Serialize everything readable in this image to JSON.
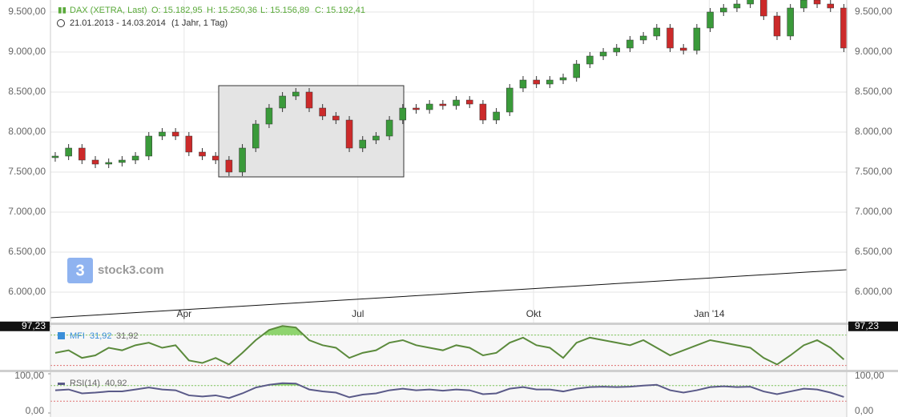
{
  "chart_data": [
    {
      "type": "candlestick",
      "title": "DAX (XETRA, Last)",
      "quote": [
        "O: 15.182,95",
        "H: 15.250,36",
        "L: 15.156,89",
        "C: 15.192,41"
      ],
      "period": "21.01.2013 - 14.03.2014",
      "period_note": "(1 Jahr, 1 Tag)",
      "watermark": "stock3.com",
      "x": [
        "2013-01-21",
        "2013-01-28",
        "2013-02-04",
        "2013-02-11",
        "2013-02-18",
        "2013-02-25",
        "2013-03-04",
        "2013-03-11",
        "2013-03-18",
        "2013-03-25",
        "2013-04-01",
        "2013-04-08",
        "2013-04-15",
        "2013-04-22",
        "2013-04-29",
        "2013-05-06",
        "2013-05-13",
        "2013-05-20",
        "2013-05-27",
        "2013-06-03",
        "2013-06-10",
        "2013-06-17",
        "2013-06-24",
        "2013-07-01",
        "2013-07-08",
        "2013-07-15",
        "2013-07-22",
        "2013-07-29",
        "2013-08-05",
        "2013-08-12",
        "2013-08-19",
        "2013-08-26",
        "2013-09-02",
        "2013-09-09",
        "2013-09-16",
        "2013-09-23",
        "2013-09-30",
        "2013-10-07",
        "2013-10-14",
        "2013-10-21",
        "2013-10-28",
        "2013-11-04",
        "2013-11-11",
        "2013-11-18",
        "2013-11-25",
        "2013-12-02",
        "2013-12-09",
        "2013-12-16",
        "2013-12-23",
        "2013-12-30",
        "2014-01-06",
        "2014-01-13",
        "2014-01-20",
        "2014-01-27",
        "2014-02-03",
        "2014-02-10",
        "2014-02-17",
        "2014-02-24",
        "2014-03-03",
        "2014-03-10"
      ],
      "open": [
        7680,
        7700,
        7800,
        7650,
        7600,
        7620,
        7650,
        7700,
        7950,
        8000,
        7950,
        7750,
        7700,
        7650,
        7500,
        7800,
        8100,
        8300,
        8450,
        8500,
        8300,
        8200,
        8150,
        7800,
        7900,
        7950,
        8150,
        8300,
        8280,
        8350,
        8330,
        8400,
        8350,
        8150,
        8250,
        8550,
        8650,
        8600,
        8650,
        8680,
        8850,
        8950,
        9000,
        9050,
        9150,
        9200,
        9300,
        9050,
        9020,
        9300,
        9500,
        9550,
        9600,
        9700,
        9450,
        9200,
        9550,
        9650,
        9600,
        9550
      ],
      "high": [
        7750,
        7850,
        7850,
        7700,
        7670,
        7700,
        7750,
        8000,
        8050,
        8050,
        8000,
        7800,
        7750,
        7700,
        7850,
        8150,
        8350,
        8500,
        8550,
        8550,
        8350,
        8250,
        8200,
        7950,
        8000,
        8200,
        8350,
        8350,
        8400,
        8400,
        8450,
        8450,
        8400,
        8300,
        8600,
        8700,
        8700,
        8700,
        8730,
        8900,
        9000,
        9050,
        9100,
        9200,
        9250,
        9350,
        9350,
        9100,
        9350,
        9550,
        9600,
        9650,
        9750,
        9750,
        9500,
        9600,
        9700,
        9700,
        9650,
        9600
      ],
      "low": [
        7630,
        7650,
        7600,
        7550,
        7550,
        7570,
        7600,
        7650,
        7900,
        7900,
        7700,
        7650,
        7600,
        7450,
        7450,
        7750,
        8050,
        8250,
        8400,
        8250,
        8150,
        8100,
        7750,
        7750,
        7850,
        7900,
        8100,
        8230,
        8230,
        8280,
        8280,
        8300,
        8100,
        8100,
        8200,
        8500,
        8550,
        8550,
        8600,
        8630,
        8800,
        8900,
        8950,
        9000,
        9100,
        9150,
        9000,
        8970,
        8970,
        9250,
        9450,
        9500,
        9550,
        9400,
        9150,
        9150,
        9500,
        9550,
        9500,
        9000
      ],
      "close": [
        7700,
        7800,
        7650,
        7600,
        7620,
        7650,
        7700,
        7950,
        8000,
        7950,
        7750,
        7700,
        7650,
        7500,
        7800,
        8100,
        8300,
        8450,
        8500,
        8300,
        8200,
        8150,
        7800,
        7900,
        7950,
        8150,
        8300,
        8280,
        8350,
        8330,
        8400,
        8350,
        8150,
        8250,
        8550,
        8650,
        8600,
        8650,
        8680,
        8850,
        8950,
        9000,
        9050,
        9150,
        9200,
        9300,
        9050,
        9020,
        9300,
        9500,
        9550,
        9600,
        9700,
        9450,
        9200,
        9550,
        9650,
        9600,
        9550,
        9050
      ],
      "up_color": "#3a9a3a",
      "down_color": "#cc2a2a",
      "xlim": [
        "2013-01-21",
        "2014-03-14"
      ],
      "xticks": [
        {
          "value": "2013-04-01",
          "label": "Apr"
        },
        {
          "value": "2013-07-01",
          "label": "Jul"
        },
        {
          "value": "2013-10-01",
          "label": "Okt"
        },
        {
          "value": "2014-01-01",
          "label": "Jan '14"
        }
      ],
      "ylim": [
        5670,
        9650
      ],
      "yticks": [
        {
          "value": 6000,
          "label": "6.000,00"
        },
        {
          "value": 6500,
          "label": "6.500,00"
        },
        {
          "value": 7000,
          "label": "7.000,00"
        },
        {
          "value": 7500,
          "label": "7.500,00"
        },
        {
          "value": 8000,
          "label": "8.000,00"
        },
        {
          "value": 8500,
          "label": "8.500,00"
        },
        {
          "value": 9000,
          "label": "9.000,00"
        },
        {
          "value": 9500,
          "label": "9.500,00"
        }
      ],
      "grid": true
    },
    {
      "type": "line",
      "name": "MFI",
      "legend_values": [
        "31,92",
        "31,92"
      ],
      "color": "#5b8a3c",
      "fill_color": "#8fd46f",
      "values": [
        45,
        50,
        35,
        40,
        55,
        50,
        60,
        65,
        55,
        60,
        30,
        25,
        35,
        22,
        45,
        70,
        90,
        98,
        95,
        70,
        60,
        55,
        35,
        45,
        50,
        65,
        70,
        60,
        55,
        50,
        60,
        55,
        40,
        45,
        65,
        75,
        60,
        55,
        35,
        65,
        75,
        70,
        65,
        60,
        70,
        55,
        40,
        50,
        60,
        70,
        65,
        60,
        55,
        35,
        22,
        40,
        60,
        70,
        55,
        31.92
      ],
      "ylim": [
        10,
        100
      ],
      "yticks": [
        {
          "value": 97.23,
          "label": "97,23"
        }
      ],
      "levels": [
        80,
        20
      ]
    },
    {
      "type": "line",
      "name": "RSI(14)",
      "legend_values": [
        "40,92"
      ],
      "color": "#5a5a88",
      "fill_color": "#8fd46f",
      "values": [
        58,
        60,
        50,
        52,
        55,
        55,
        60,
        65,
        60,
        58,
        45,
        42,
        45,
        38,
        50,
        65,
        72,
        76,
        75,
        60,
        55,
        52,
        40,
        47,
        50,
        58,
        62,
        58,
        60,
        57,
        60,
        58,
        48,
        50,
        62,
        66,
        60,
        60,
        55,
        62,
        66,
        67,
        66,
        67,
        70,
        72,
        58,
        52,
        58,
        66,
        68,
        66,
        67,
        55,
        48,
        55,
        62,
        60,
        52,
        40.92
      ],
      "ylim": [
        0,
        100
      ],
      "yticks": [
        {
          "value": 100,
          "label": "100,00"
        },
        {
          "value": 0,
          "label": "0,00"
        }
      ],
      "levels": [
        70,
        30
      ]
    }
  ]
}
